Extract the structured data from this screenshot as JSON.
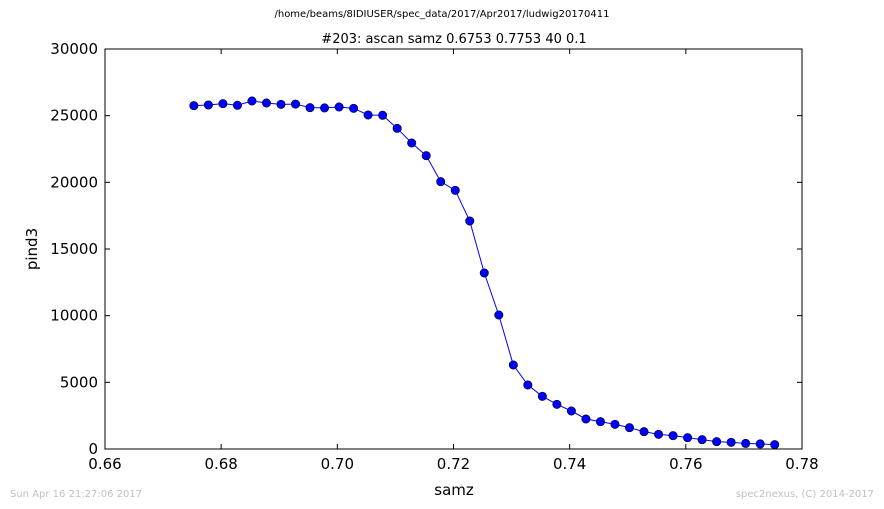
{
  "figure": {
    "supertitle": "/home/beams/8IDIUSER/spec_data/2017/Apr2017/ludwig20170411",
    "footer_left": "Sun Apr 16 21:27:06 2017",
    "footer_right": "spec2nexus, (C) 2014-2017"
  },
  "chart_data": {
    "type": "line",
    "title": "#203: ascan  samz 0.6753 0.7753  40 0.1",
    "xlabel": "samz",
    "ylabel": "pind3",
    "xlim": [
      0.66,
      0.78
    ],
    "ylim": [
      0,
      30000
    ],
    "xticks": [
      "0.66",
      "0.68",
      "0.70",
      "0.72",
      "0.74",
      "0.76",
      "0.78"
    ],
    "yticks": [
      "0",
      "5000",
      "10000",
      "15000",
      "20000",
      "25000",
      "30000"
    ],
    "grid": false,
    "marker": "circle",
    "line_color": "#0000ff",
    "marker_color": "#0000ff",
    "series": [
      {
        "x": [
          0.6753,
          0.6778,
          0.6803,
          0.6828,
          0.6853,
          0.6878,
          0.6903,
          0.6928,
          0.6953,
          0.6978,
          0.7003,
          0.7028,
          0.7053,
          0.7078,
          0.7103,
          0.7128,
          0.7153,
          0.7178,
          0.7203,
          0.7228,
          0.7253,
          0.7278,
          0.7303,
          0.7328,
          0.7353,
          0.7378,
          0.7403,
          0.7428,
          0.7453,
          0.7478,
          0.7503,
          0.7528,
          0.7553,
          0.7578,
          0.7603,
          0.7628,
          0.7653,
          0.7678,
          0.7703,
          0.7728,
          0.7753
        ],
        "y": [
          25750,
          25800,
          25900,
          25780,
          26100,
          25950,
          25850,
          25870,
          25600,
          25580,
          25650,
          25550,
          25050,
          25030,
          24050,
          22950,
          22000,
          20050,
          19400,
          17100,
          13200,
          10050,
          6300,
          4800,
          3950,
          3350,
          2850,
          2250,
          2050,
          1850,
          1600,
          1300,
          1100,
          1000,
          850,
          700,
          550,
          500,
          420,
          380,
          330
        ]
      }
    ]
  }
}
